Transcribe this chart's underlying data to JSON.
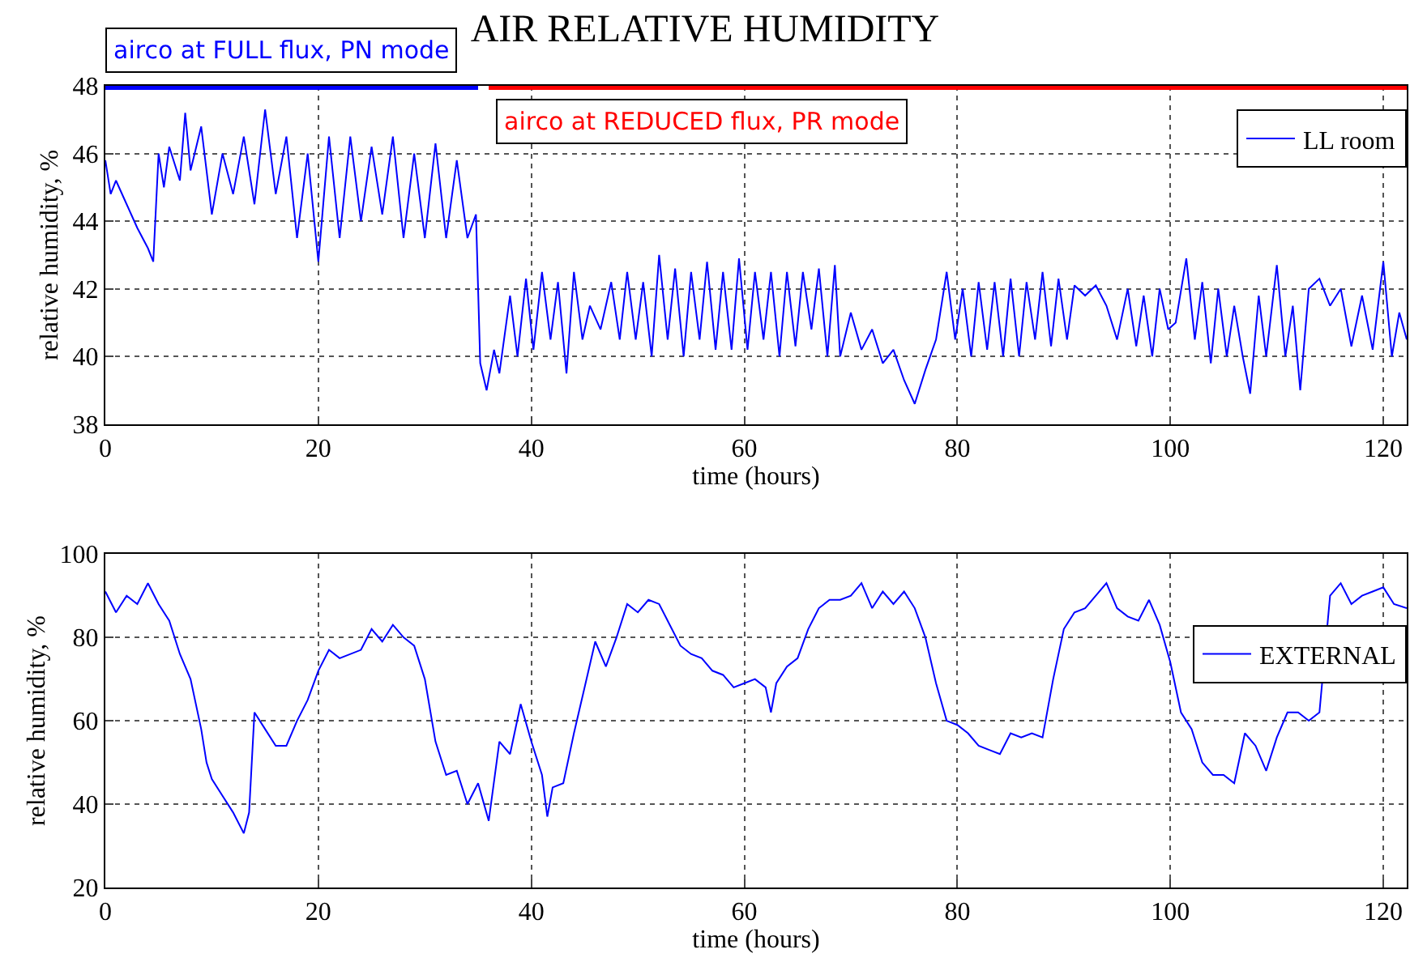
{
  "chart_data": [
    {
      "type": "line",
      "title": "AIR RELATIVE HUMIDITY",
      "xlabel": "time (hours)",
      "ylabel": "relative humidity, %",
      "xlim": [
        0,
        122.2
      ],
      "xticks": [
        0,
        20,
        40,
        60,
        80,
        100,
        120
      ],
      "ylim": [
        38,
        48
      ],
      "yticks": [
        38,
        40,
        42,
        44,
        46,
        48
      ],
      "grid": true,
      "legend": "top right",
      "annotations": [
        {
          "text": "airco at FULL flux, PN mode",
          "x": 0,
          "y": 48
        },
        {
          "text": "airco at REDUCED flux, PR mode",
          "x": 36,
          "y": 48
        }
      ],
      "series": [
        {
          "name": "LL room",
          "color": "#0000ff",
          "x": [
            0,
            0.5,
            1,
            2,
            3,
            4,
            4.5,
            5,
            5.5,
            6,
            7,
            7.5,
            8,
            9,
            10,
            11,
            12,
            13,
            14,
            15,
            16,
            17,
            18,
            19,
            20,
            21,
            22,
            23,
            24,
            25,
            26,
            27,
            28,
            29,
            30,
            31,
            32,
            33,
            34,
            34.8,
            35.2,
            35.8,
            36.5,
            37,
            38,
            38.7,
            39.5,
            40.2,
            41,
            41.8,
            42.5,
            43.3,
            44,
            44.8,
            45.5,
            46.5,
            47.5,
            48.3,
            49,
            49.8,
            50.5,
            51.3,
            52,
            52.8,
            53.5,
            54.3,
            55,
            55.8,
            56.5,
            57.3,
            58,
            58.8,
            59.5,
            60.3,
            61,
            61.8,
            62.5,
            63.3,
            64,
            64.8,
            65.5,
            66.3,
            67,
            67.8,
            68.5,
            69,
            70,
            71,
            72,
            73,
            74,
            75,
            76,
            77,
            78,
            79,
            79.8,
            80.5,
            81.3,
            82,
            82.8,
            83.5,
            84.3,
            85,
            85.8,
            86.5,
            87.3,
            88,
            88.8,
            89.5,
            90.3,
            91,
            92,
            93,
            94,
            95,
            96,
            96.8,
            97.5,
            98.3,
            99,
            99.8,
            100.5,
            101.5,
            102.3,
            103,
            103.8,
            104.5,
            105.3,
            106,
            106.8,
            107.5,
            108.3,
            109,
            110,
            110.8,
            111.5,
            112.2,
            113,
            114,
            115,
            116,
            117,
            118,
            119,
            120,
            120.8,
            121.5,
            122.2
          ],
          "values": [
            45.8,
            44.8,
            45.2,
            44.5,
            43.8,
            43.2,
            42.8,
            46,
            45,
            46.2,
            45.2,
            47.2,
            45.5,
            46.8,
            44.2,
            46,
            44.8,
            46.5,
            44.5,
            47.3,
            44.8,
            46.5,
            43.5,
            46,
            42.8,
            46.5,
            43.5,
            46.5,
            44,
            46.2,
            44.2,
            46.5,
            43.5,
            46,
            43.5,
            46.3,
            43.5,
            45.8,
            43.5,
            44.2,
            39.8,
            39,
            40.2,
            39.5,
            41.8,
            40,
            42.3,
            40.2,
            42.5,
            40.5,
            42.2,
            39.5,
            42.5,
            40.5,
            41.5,
            40.8,
            42.2,
            40.5,
            42.5,
            40.5,
            42.2,
            40,
            43,
            40.5,
            42.6,
            40,
            42.5,
            40.5,
            42.8,
            40.2,
            42.5,
            40.2,
            42.9,
            40.2,
            42.5,
            40.5,
            42.5,
            40,
            42.5,
            40.3,
            42.5,
            40.8,
            42.6,
            40,
            42.7,
            40,
            41.3,
            40.2,
            40.8,
            39.8,
            40.2,
            39.3,
            38.6,
            39.6,
            40.5,
            42.5,
            40.5,
            42,
            40,
            42.2,
            40.2,
            42.2,
            40,
            42.3,
            40,
            42.2,
            40.5,
            42.5,
            40.3,
            42.3,
            40.5,
            42.1,
            41.8,
            42.1,
            41.5,
            40.5,
            42,
            40.3,
            41.8,
            40,
            42,
            40.8,
            41,
            42.9,
            40.5,
            42.2,
            39.8,
            42,
            40,
            41.5,
            40,
            38.9,
            41.8,
            40,
            42.7,
            40,
            41.5,
            39,
            42,
            42.3,
            41.5,
            42,
            40.3,
            41.8,
            40.2,
            42.8,
            40,
            41.3,
            40.5
          ]
        },
        {
          "color": "#0000ff",
          "x": [
            0,
            35
          ],
          "values": [
            48,
            48
          ]
        },
        {
          "color": "#ff0000",
          "x": [
            36,
            122.2
          ],
          "values": [
            48,
            48
          ]
        }
      ]
    },
    {
      "type": "line",
      "xlabel": "time (hours)",
      "ylabel": "relative humidity, %",
      "xlim": [
        0,
        122.2
      ],
      "xticks": [
        0,
        20,
        40,
        60,
        80,
        100,
        120
      ],
      "ylim": [
        20,
        100
      ],
      "yticks": [
        20,
        40,
        60,
        80,
        100
      ],
      "grid": true,
      "legend": "right",
      "series": [
        {
          "name": "EXTERNAL",
          "color": "#0000ff",
          "x": [
            0,
            1,
            2,
            3,
            4,
            5,
            6,
            7,
            8,
            9,
            9.5,
            10,
            11,
            12,
            13,
            13.5,
            14,
            15,
            16,
            17,
            18,
            19,
            20,
            21,
            22,
            24,
            25,
            26,
            27,
            28,
            29,
            30,
            31,
            32,
            33,
            34,
            35,
            36,
            37,
            38,
            39,
            40,
            41,
            41.5,
            42,
            43,
            44,
            45,
            46,
            47,
            48,
            49,
            50,
            51,
            52,
            53,
            54,
            55,
            56,
            57,
            58,
            59,
            60,
            61,
            62,
            62.5,
            63,
            64,
            65,
            66,
            67,
            68,
            69,
            70,
            71,
            72,
            73,
            74,
            75,
            76,
            77,
            78,
            79,
            80,
            81,
            82,
            83,
            84,
            85,
            86,
            87,
            88,
            89,
            90,
            91,
            92,
            93,
            94,
            95,
            96,
            97,
            98,
            99,
            100,
            101,
            102,
            103,
            104,
            105,
            106,
            107,
            108,
            109,
            110,
            111,
            112,
            113,
            114,
            115,
            116,
            117,
            118,
            119,
            120,
            121,
            122.2
          ],
          "values": [
            91,
            86,
            90,
            88,
            93,
            88,
            84,
            76,
            70,
            58,
            50,
            46,
            42,
            38,
            33,
            38,
            62,
            58,
            54,
            54,
            60,
            65,
            72,
            77,
            75,
            77,
            82,
            79,
            83,
            80,
            78,
            70,
            55,
            47,
            48,
            40,
            45,
            36,
            55,
            52,
            64,
            55,
            47,
            37,
            44,
            45,
            57,
            68,
            79,
            73,
            80,
            88,
            86,
            89,
            88,
            83,
            78,
            76,
            75,
            72,
            71,
            68,
            69,
            70,
            68,
            62,
            69,
            73,
            75,
            82,
            87,
            89,
            89,
            90,
            93,
            87,
            91,
            88,
            91,
            87,
            80,
            69,
            60,
            59,
            57,
            54,
            53,
            52,
            57,
            56,
            57,
            56,
            70,
            82,
            86,
            87,
            90,
            93,
            87,
            85,
            84,
            89,
            83,
            74,
            62,
            58,
            50,
            47,
            47,
            45,
            57,
            54,
            48,
            56,
            62,
            62,
            60,
            62,
            90,
            93,
            88,
            90,
            91,
            92,
            88,
            87
          ]
        }
      ]
    }
  ]
}
